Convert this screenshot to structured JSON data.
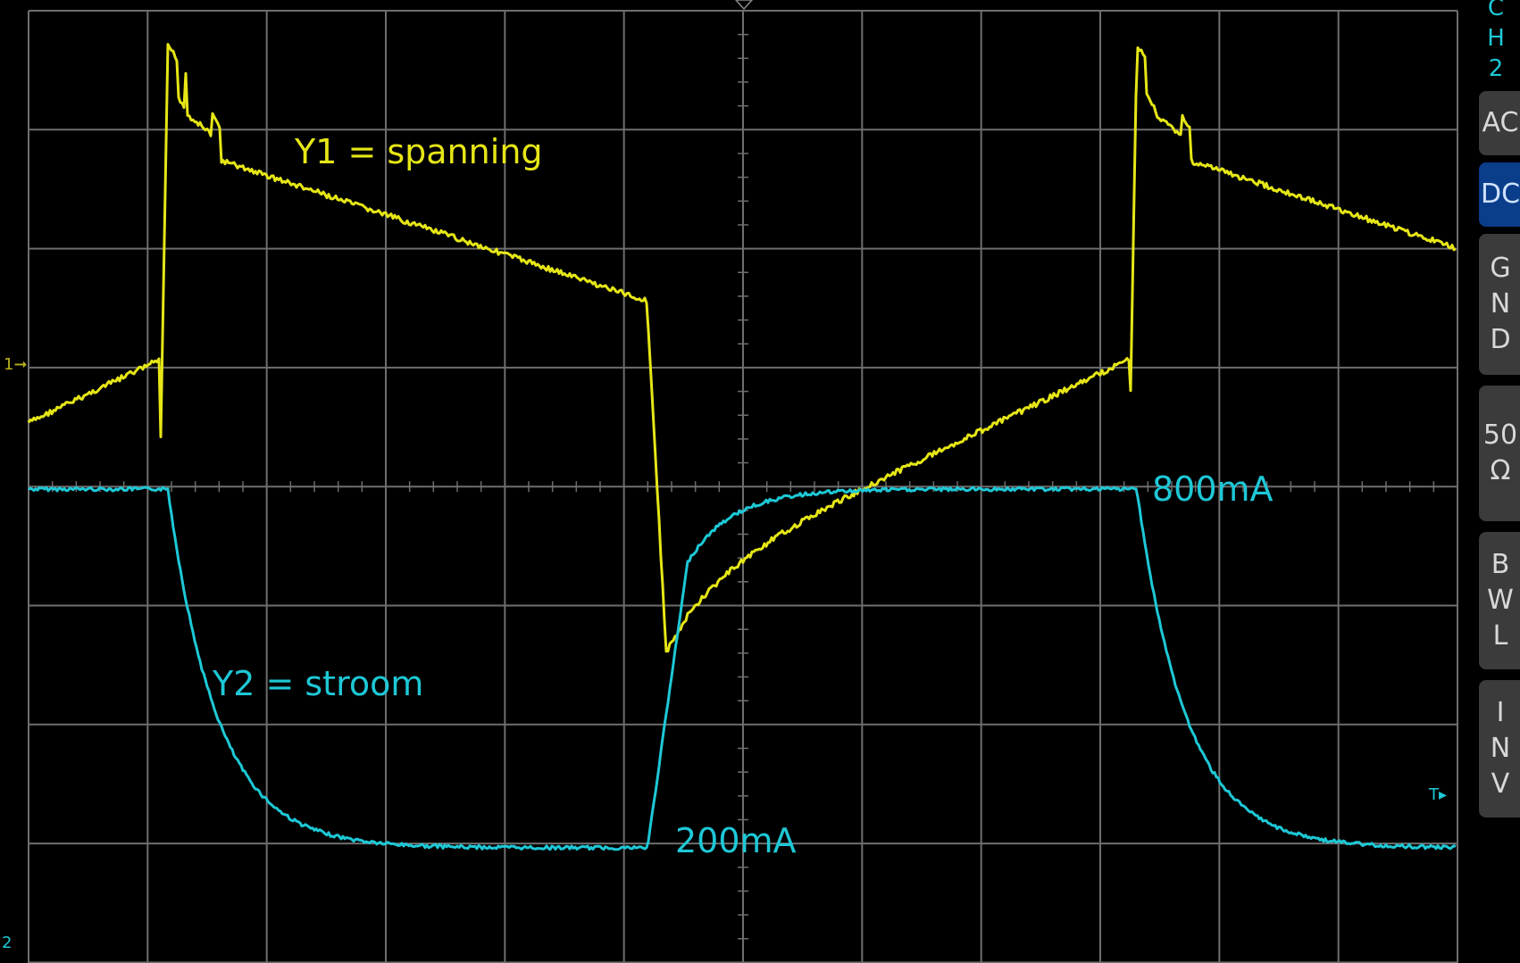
{
  "screen": {
    "colors": {
      "background": "#000000",
      "grid": "#6e6e6e",
      "ch1": "#e6e617",
      "ch2": "#1ec8d6",
      "button": "#3b3b3b",
      "button_active": "#0a3d8a"
    },
    "grid": {
      "hdiv": 12,
      "vdiv": 8
    }
  },
  "channel_panel": {
    "title": "CH2",
    "title_chars": [
      "C",
      "H",
      "2"
    ],
    "buttons": [
      {
        "id": "ac",
        "label": "AC",
        "active": false
      },
      {
        "id": "dc",
        "label": "DC",
        "active": true
      },
      {
        "id": "gnd",
        "label": "GND",
        "lines": [
          "G",
          "N",
          "D"
        ],
        "active": false
      },
      {
        "id": "50ohm",
        "label": "50Ω",
        "lines": [
          "50",
          "Ω"
        ],
        "active": false
      },
      {
        "id": "bwl",
        "label": "BWL",
        "lines": [
          "B",
          "W",
          "L"
        ],
        "active": false
      },
      {
        "id": "inv",
        "label": "INV",
        "lines": [
          "I",
          "N",
          "V"
        ],
        "active": false
      }
    ]
  },
  "markers": {
    "ch1_ground": "1",
    "ch2_ground": "2",
    "trigger": "T"
  },
  "annotations": {
    "y1": "Y1 = spanning",
    "y2": "Y2 = stroom",
    "high": "800mA",
    "low": "200mA"
  }
}
